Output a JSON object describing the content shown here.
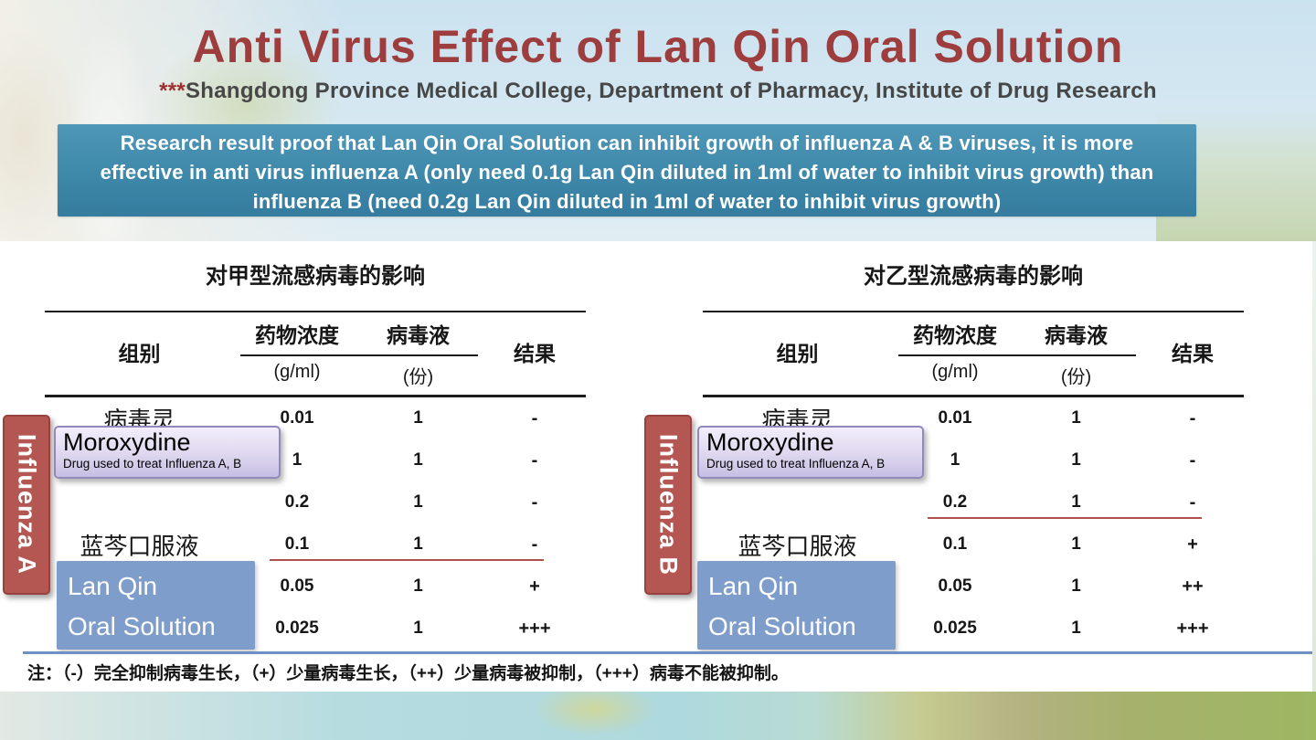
{
  "slide": {
    "title": "Anti Virus Effect of Lan Qin Oral Solution",
    "subtitle_stars": "***",
    "subtitle": "Shangdong Province Medical College, Department of Pharmacy, Institute of Drug Research",
    "summary": {
      "lines": [
        "Research result proof that Lan Qin Oral Solution can inhibit growth of influenza A & B viruses, it is more",
        "effective in anti virus influenza A (only need 0.1g  Lan Qin diluted in 1ml of water to inhibit virus growth) than",
        "influenza B (need 0.2g Lan Qin diluted in 1ml of water to inhibit virus growth)"
      ]
    },
    "footnote": "注：（-）完全抑制病毒生长，（+）少量病毒生长，（++）少量病毒被抑制，（+++）病毒不能被抑制。"
  },
  "tables": [
    {
      "title": "对甲型流感病毒的影响",
      "cols": {
        "group": "组别",
        "conc": "药物浓度",
        "conc_unit": "(g/ml)",
        "virus": "病毒液",
        "virus_unit": "(份)",
        "result": "结果"
      },
      "rows": [
        {
          "group": "病毒灵",
          "conc": "0.01",
          "virus": "1",
          "result": "-"
        },
        {
          "group": "",
          "conc": "1",
          "virus": "1",
          "result": "-"
        },
        {
          "group": "",
          "conc": "0.2",
          "virus": "1",
          "result": "-"
        },
        {
          "group": "蓝芩口服液",
          "conc": "0.1",
          "virus": "1",
          "result": "-"
        },
        {
          "group": "",
          "conc": "0.05",
          "virus": "1",
          "result": "+"
        },
        {
          "group": "",
          "conc": "0.025",
          "virus": "1",
          "result": "+++"
        }
      ]
    },
    {
      "title": "对乙型流感病毒的影响",
      "cols": {
        "group": "组别",
        "conc": "药物浓度",
        "conc_unit": "(g/ml)",
        "virus": "病毒液",
        "virus_unit": "(份)",
        "result": "结果"
      },
      "rows": [
        {
          "group": "病毒灵",
          "conc": "0.01",
          "virus": "1",
          "result": "-"
        },
        {
          "group": "",
          "conc": "1",
          "virus": "1",
          "result": "-"
        },
        {
          "group": "",
          "conc": "0.2",
          "virus": "1",
          "result": "-"
        },
        {
          "group": "蓝芩口服液",
          "conc": "0.1",
          "virus": "1",
          "result": "+"
        },
        {
          "group": "",
          "conc": "0.05",
          "virus": "1",
          "result": "++"
        },
        {
          "group": "",
          "conc": "0.025",
          "virus": "1",
          "result": "+++"
        }
      ]
    }
  ],
  "annotations": {
    "influenza_a": "Influenza A",
    "influenza_b": "Influenza B",
    "moroxydine": {
      "title": "Moroxydine",
      "subtitle": "Drug used to treat Influenza A, B"
    },
    "lanqin": {
      "line1": "Lan Qin",
      "line2": "Oral Solution"
    }
  },
  "colors": {
    "title_red": "#9d3d3d",
    "summary_box_teal": "#3e88aa",
    "influenza_label_red": "#b45752",
    "moroxydine_lavender": "#d9d2ec",
    "lanqin_blue": "#7f9dca",
    "red_underline": "#b0504c",
    "blue_divider": "#6f90c5"
  }
}
